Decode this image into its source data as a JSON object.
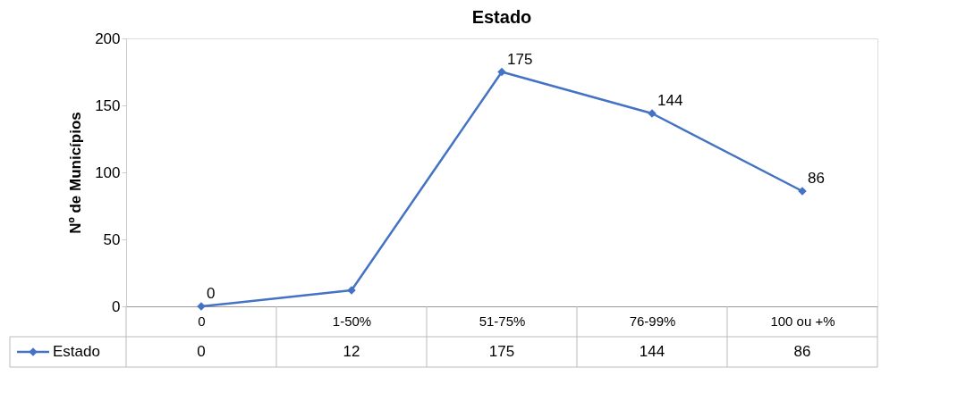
{
  "chart_data": {
    "type": "line",
    "title": "Estado",
    "ylabel": "Nº de Municípios",
    "categories": [
      "0",
      "1-50%",
      "51-75%",
      "76-99%",
      "100 ou +%"
    ],
    "series": [
      {
        "name": "Estado",
        "color": "#4472c4",
        "values": [
          0,
          12,
          175,
          144,
          86
        ],
        "value_labels": [
          "0",
          "12",
          "175",
          "144",
          "86"
        ]
      }
    ],
    "ylim": [
      0,
      200
    ],
    "yticks": [
      0,
      50,
      100,
      150,
      200
    ],
    "grid": false,
    "legend": "bottom",
    "marker": "diamond",
    "line_style": "solid",
    "annotations": [
      {
        "text": "0",
        "x": "0",
        "y": 0
      },
      {
        "text": "175",
        "x": "51-75%",
        "y": 175
      },
      {
        "text": "144",
        "x": "76-99%",
        "y": 144
      },
      {
        "text": "86",
        "x": "100 ou +%",
        "y": 86
      }
    ]
  }
}
